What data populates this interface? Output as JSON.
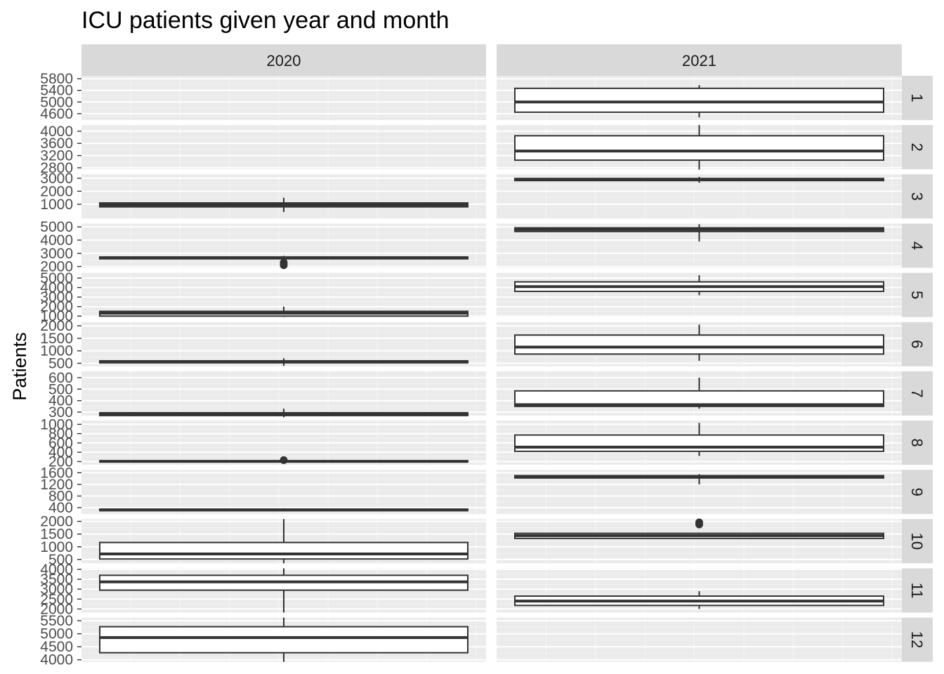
{
  "chart_data": {
    "type": "boxplot",
    "title": "ICU patients given year and month",
    "ylabel": "Patients",
    "xlabel": "",
    "facet_cols": [
      "2020",
      "2021"
    ],
    "facet_rows": [
      "1",
      "2",
      "3",
      "4",
      "5",
      "6",
      "7",
      "8",
      "9",
      "10",
      "11",
      "12"
    ],
    "grid": true,
    "rows": [
      {
        "month": "1",
        "ticks": [
          4600,
          5000,
          5400,
          5800
        ],
        "tick_labels": [
          "4600",
          "5000",
          "5400",
          "5800"
        ],
        "ylim": [
          4380,
          5900
        ],
        "boxes": {
          "2020": null,
          "2021": {
            "q1": 4650,
            "median": 5000,
            "q3": 5470,
            "whisker_low": 4470,
            "whisker_high": 5580,
            "outliers": []
          }
        }
      },
      {
        "month": "2",
        "ticks": [
          2800,
          3200,
          3600,
          4000
        ],
        "tick_labels": [
          "2800",
          "3200",
          "3600",
          "4000"
        ],
        "ylim": [
          2750,
          4200
        ],
        "boxes": {
          "2020": null,
          "2021": {
            "q1": 3050,
            "median": 3350,
            "q3": 3850,
            "whisker_low": 2740,
            "whisker_high": 4200,
            "outliers": []
          }
        }
      },
      {
        "month": "3",
        "ticks": [
          1000,
          2000,
          3000
        ],
        "tick_labels": [
          "1000",
          "2000",
          "3000"
        ],
        "ylim": [
          -100,
          3300
        ],
        "boxes": {
          "2020": {
            "q1": 800,
            "median": 950,
            "q3": 1100,
            "whisker_low": 400,
            "whisker_high": 1500,
            "outliers": []
          },
          "2021": {
            "q1": 2820,
            "median": 2900,
            "q3": 2980,
            "whisker_low": 2650,
            "whisker_high": 3100,
            "outliers": []
          }
        }
      },
      {
        "month": "4",
        "ticks": [
          2000,
          3000,
          4000,
          5000
        ],
        "tick_labels": [
          "2000",
          "3000",
          "4000",
          "5000"
        ],
        "ylim": [
          1900,
          5250
        ],
        "boxes": {
          "2020": {
            "q1": 2580,
            "median": 2640,
            "q3": 2720,
            "whisker_low": 2500,
            "whisker_high": 2800,
            "outliers": [
              2300,
              2100
            ]
          },
          "2021": {
            "q1": 4650,
            "median": 4800,
            "q3": 4930,
            "whisker_low": 3900,
            "whisker_high": 5200,
            "outliers": []
          }
        }
      },
      {
        "month": "5",
        "ticks": [
          1000,
          2000,
          3000,
          4000,
          5000
        ],
        "tick_labels": [
          "1000",
          "2000",
          "3000",
          "4000",
          "5000"
        ],
        "ylim": [
          900,
          5550
        ],
        "boxes": {
          "2020": {
            "q1": 1000,
            "median": 1300,
            "q3": 1500,
            "whisker_low": 900,
            "whisker_high": 2000,
            "outliers": []
          },
          "2021": {
            "q1": 3600,
            "median": 4100,
            "q3": 4600,
            "whisker_low": 3200,
            "whisker_high": 5300,
            "outliers": []
          }
        }
      },
      {
        "month": "6",
        "ticks": [
          500,
          1000,
          1500,
          2000
        ],
        "tick_labels": [
          "500",
          "1000",
          "1500",
          "2000"
        ],
        "ylim": [
          380,
          2150
        ],
        "boxes": {
          "2020": {
            "q1": 520,
            "median": 560,
            "q3": 600,
            "whisker_low": 400,
            "whisker_high": 700,
            "outliers": []
          },
          "2021": {
            "q1": 870,
            "median": 1150,
            "q3": 1630,
            "whisker_low": 600,
            "whisker_high": 2050,
            "outliers": []
          }
        }
      },
      {
        "month": "7",
        "ticks": [
          300,
          400,
          500,
          600
        ],
        "tick_labels": [
          "300",
          "400",
          "500",
          "600"
        ],
        "ylim": [
          270,
          655
        ],
        "boxes": {
          "2020": {
            "q1": 270,
            "median": 280,
            "q3": 295,
            "whisker_low": 255,
            "whisker_high": 330,
            "outliers": []
          },
          "2021": {
            "q1": 350,
            "median": 365,
            "q3": 485,
            "whisker_low": 330,
            "whisker_high": 600,
            "outliers": []
          }
        }
      },
      {
        "month": "8",
        "ticks": [
          200,
          400,
          600,
          800,
          1000
        ],
        "tick_labels": [
          "200",
          "400",
          "600",
          "800",
          "1000"
        ],
        "ylim": [
          130,
          1080
        ],
        "boxes": {
          "2020": {
            "q1": 195,
            "median": 205,
            "q3": 215,
            "whisker_low": 185,
            "whisker_high": 225,
            "outliers": [
              230
            ]
          },
          "2021": {
            "q1": 420,
            "median": 510,
            "q3": 770,
            "whisker_low": 320,
            "whisker_high": 1030,
            "outliers": []
          }
        }
      },
      {
        "month": "9",
        "ticks": [
          400,
          800,
          1200,
          1600
        ],
        "tick_labels": [
          "400",
          "800",
          "1200",
          "1600"
        ],
        "ylim": [
          180,
          1700
        ],
        "boxes": {
          "2020": {
            "q1": 300,
            "median": 320,
            "q3": 350,
            "whisker_low": 280,
            "whisker_high": 380,
            "outliers": []
          },
          "2021": {
            "q1": 1420,
            "median": 1460,
            "q3": 1500,
            "whisker_low": 1200,
            "whisker_high": 1550,
            "outliers": []
          }
        }
      },
      {
        "month": "10",
        "ticks": [
          500,
          1000,
          1500,
          2000
        ],
        "tick_labels": [
          "500",
          "1000",
          "1500",
          "2000"
        ],
        "ylim": [
          350,
          2090
        ],
        "boxes": {
          "2020": {
            "q1": 520,
            "median": 720,
            "q3": 1170,
            "whisker_low": 350,
            "whisker_high": 2090,
            "outliers": []
          },
          "2021": {
            "q1": 1330,
            "median": 1440,
            "q3": 1530,
            "whisker_low": 1330,
            "whisker_high": 1560,
            "outliers": [
              1960,
              1880
            ]
          }
        }
      },
      {
        "month": "11",
        "ticks": [
          2000,
          2500,
          3000,
          3500,
          4000
        ],
        "tick_labels": [
          "2000",
          "2500",
          "3000",
          "3500",
          "4000"
        ],
        "ylim": [
          1820,
          4050
        ],
        "boxes": {
          "2020": {
            "q1": 2950,
            "median": 3370,
            "q3": 3700,
            "whisker_low": 1820,
            "whisker_high": 4050,
            "outliers": []
          },
          "2021": {
            "q1": 2180,
            "median": 2400,
            "q3": 2650,
            "whisker_low": 2000,
            "whisker_high": 2900,
            "outliers": []
          }
        }
      },
      {
        "month": "12",
        "ticks": [
          4000,
          4500,
          5000,
          5500
        ],
        "tick_labels": [
          "4000",
          "4500",
          "5000",
          "5500"
        ],
        "ylim": [
          3920,
          5620
        ],
        "boxes": {
          "2020": {
            "q1": 4270,
            "median": 4850,
            "q3": 5270,
            "whisker_low": 3920,
            "whisker_high": 5620,
            "outliers": []
          },
          "2021": null
        }
      }
    ]
  },
  "colors": {
    "panel_background": "#ebebeb",
    "grid_major": "#ffffff",
    "grid_minor": "#f2f2f2",
    "strip_background": "#d9d9d9",
    "box_outline": "#333333",
    "box_fill": "#ffffff",
    "tick_text": "#4d4d4d"
  }
}
